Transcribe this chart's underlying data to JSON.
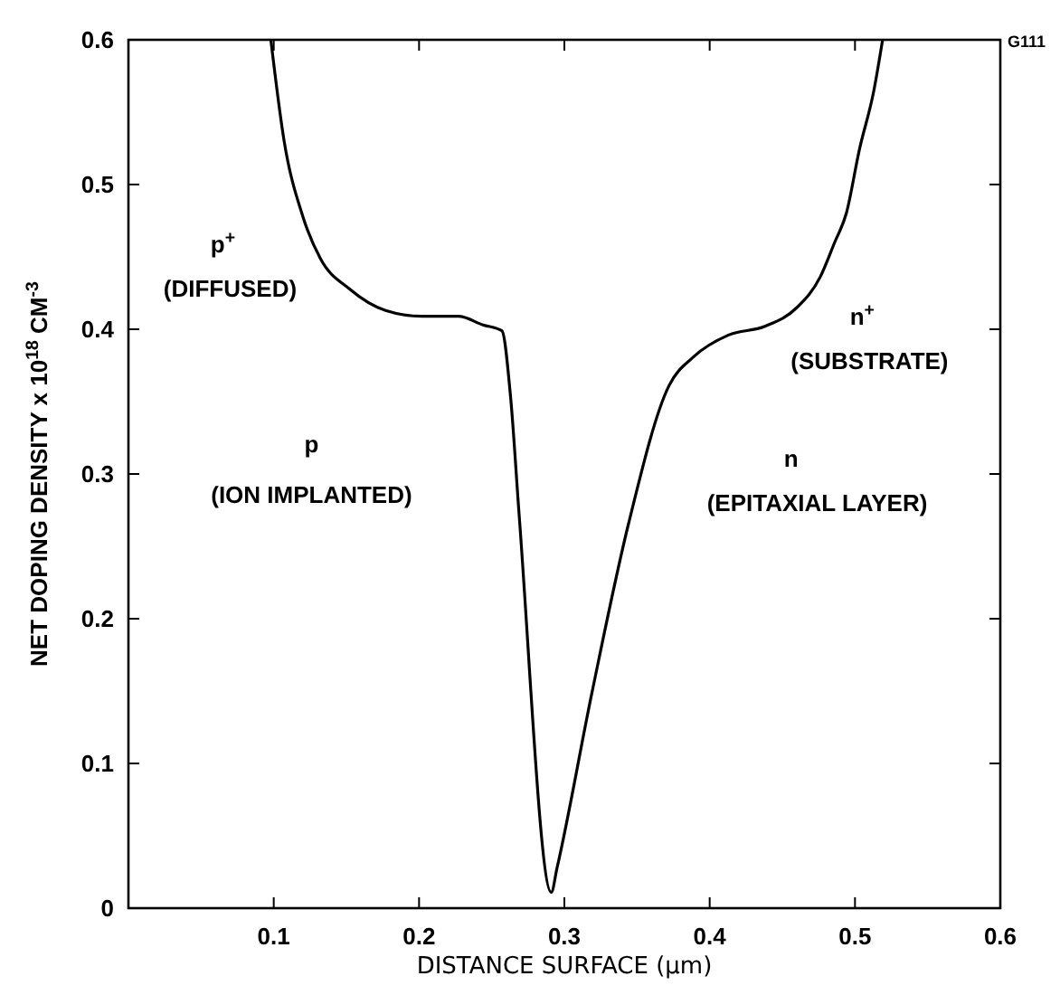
{
  "chart_data": {
    "type": "line",
    "xlabel": "DISTANCE SURFACE (μm)",
    "ylabel": "NET DOPING DENSITY x 10$^{18}$ CM$^{-3}$",
    "x": [
      0.098,
      0.107,
      0.12,
      0.132,
      0.152,
      0.177,
      0.202,
      0.227,
      0.244,
      0.257,
      0.263,
      0.269,
      0.291,
      0.295,
      0.319,
      0.344,
      0.372,
      0.389,
      0.413,
      0.438,
      0.46,
      0.476,
      0.486,
      0.494,
      0.503,
      0.513,
      0.519
    ],
    "series": [
      {
        "color": "#000000",
        "values": [
          0.6,
          0.531,
          0.478,
          0.449,
          0.428,
          0.413,
          0.409,
          0.409,
          0.403,
          0.399,
          0.353,
          0.27,
          0.011,
          0.028,
          0.149,
          0.265,
          0.361,
          0.381,
          0.396,
          0.402,
          0.415,
          0.436,
          0.46,
          0.48,
          0.524,
          0.565,
          0.6
        ]
      }
    ],
    "xlim": [
      0,
      0.6
    ],
    "ylim": [
      0,
      0.6
    ],
    "xticks": [
      {
        "value": 0,
        "label": null
      },
      0.1,
      0.2,
      0.3,
      0.4,
      0.5,
      0.6
    ],
    "yticks": [
      0,
      0.1,
      0.2,
      0.3,
      0.4,
      0.5,
      0.6
    ],
    "grid": false,
    "marker": "none",
    "line_style": "solid",
    "annotations": [
      "p$^{+}$",
      "(DIFFUSED)",
      "p",
      "(ION IMPLANTED)",
      "n$^{+}$",
      "(SUBSTRATE)",
      "n",
      "(EPITAXIAL LAYER)",
      "G111"
    ]
  }
}
